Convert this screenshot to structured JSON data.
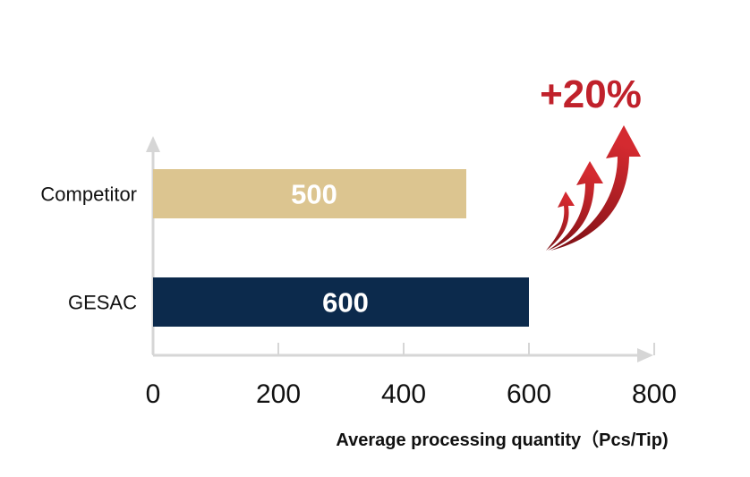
{
  "chart_data": {
    "type": "bar",
    "orientation": "horizontal",
    "categories": [
      "Competitor",
      "GESAC"
    ],
    "values": [
      500,
      600
    ],
    "bar_colors": [
      "#dcc590",
      "#0c2a4c"
    ],
    "data_labels": [
      "500",
      "600"
    ],
    "xlabel": "Average processing quantity（Pcs/Tip)",
    "xlim": [
      0,
      800
    ],
    "xticks": [
      "0",
      "200",
      "400",
      "600",
      "800"
    ],
    "grid": false,
    "annotation": {
      "text": "+20%",
      "color": "#c0212b",
      "icon": "rising-arrows-icon"
    }
  }
}
